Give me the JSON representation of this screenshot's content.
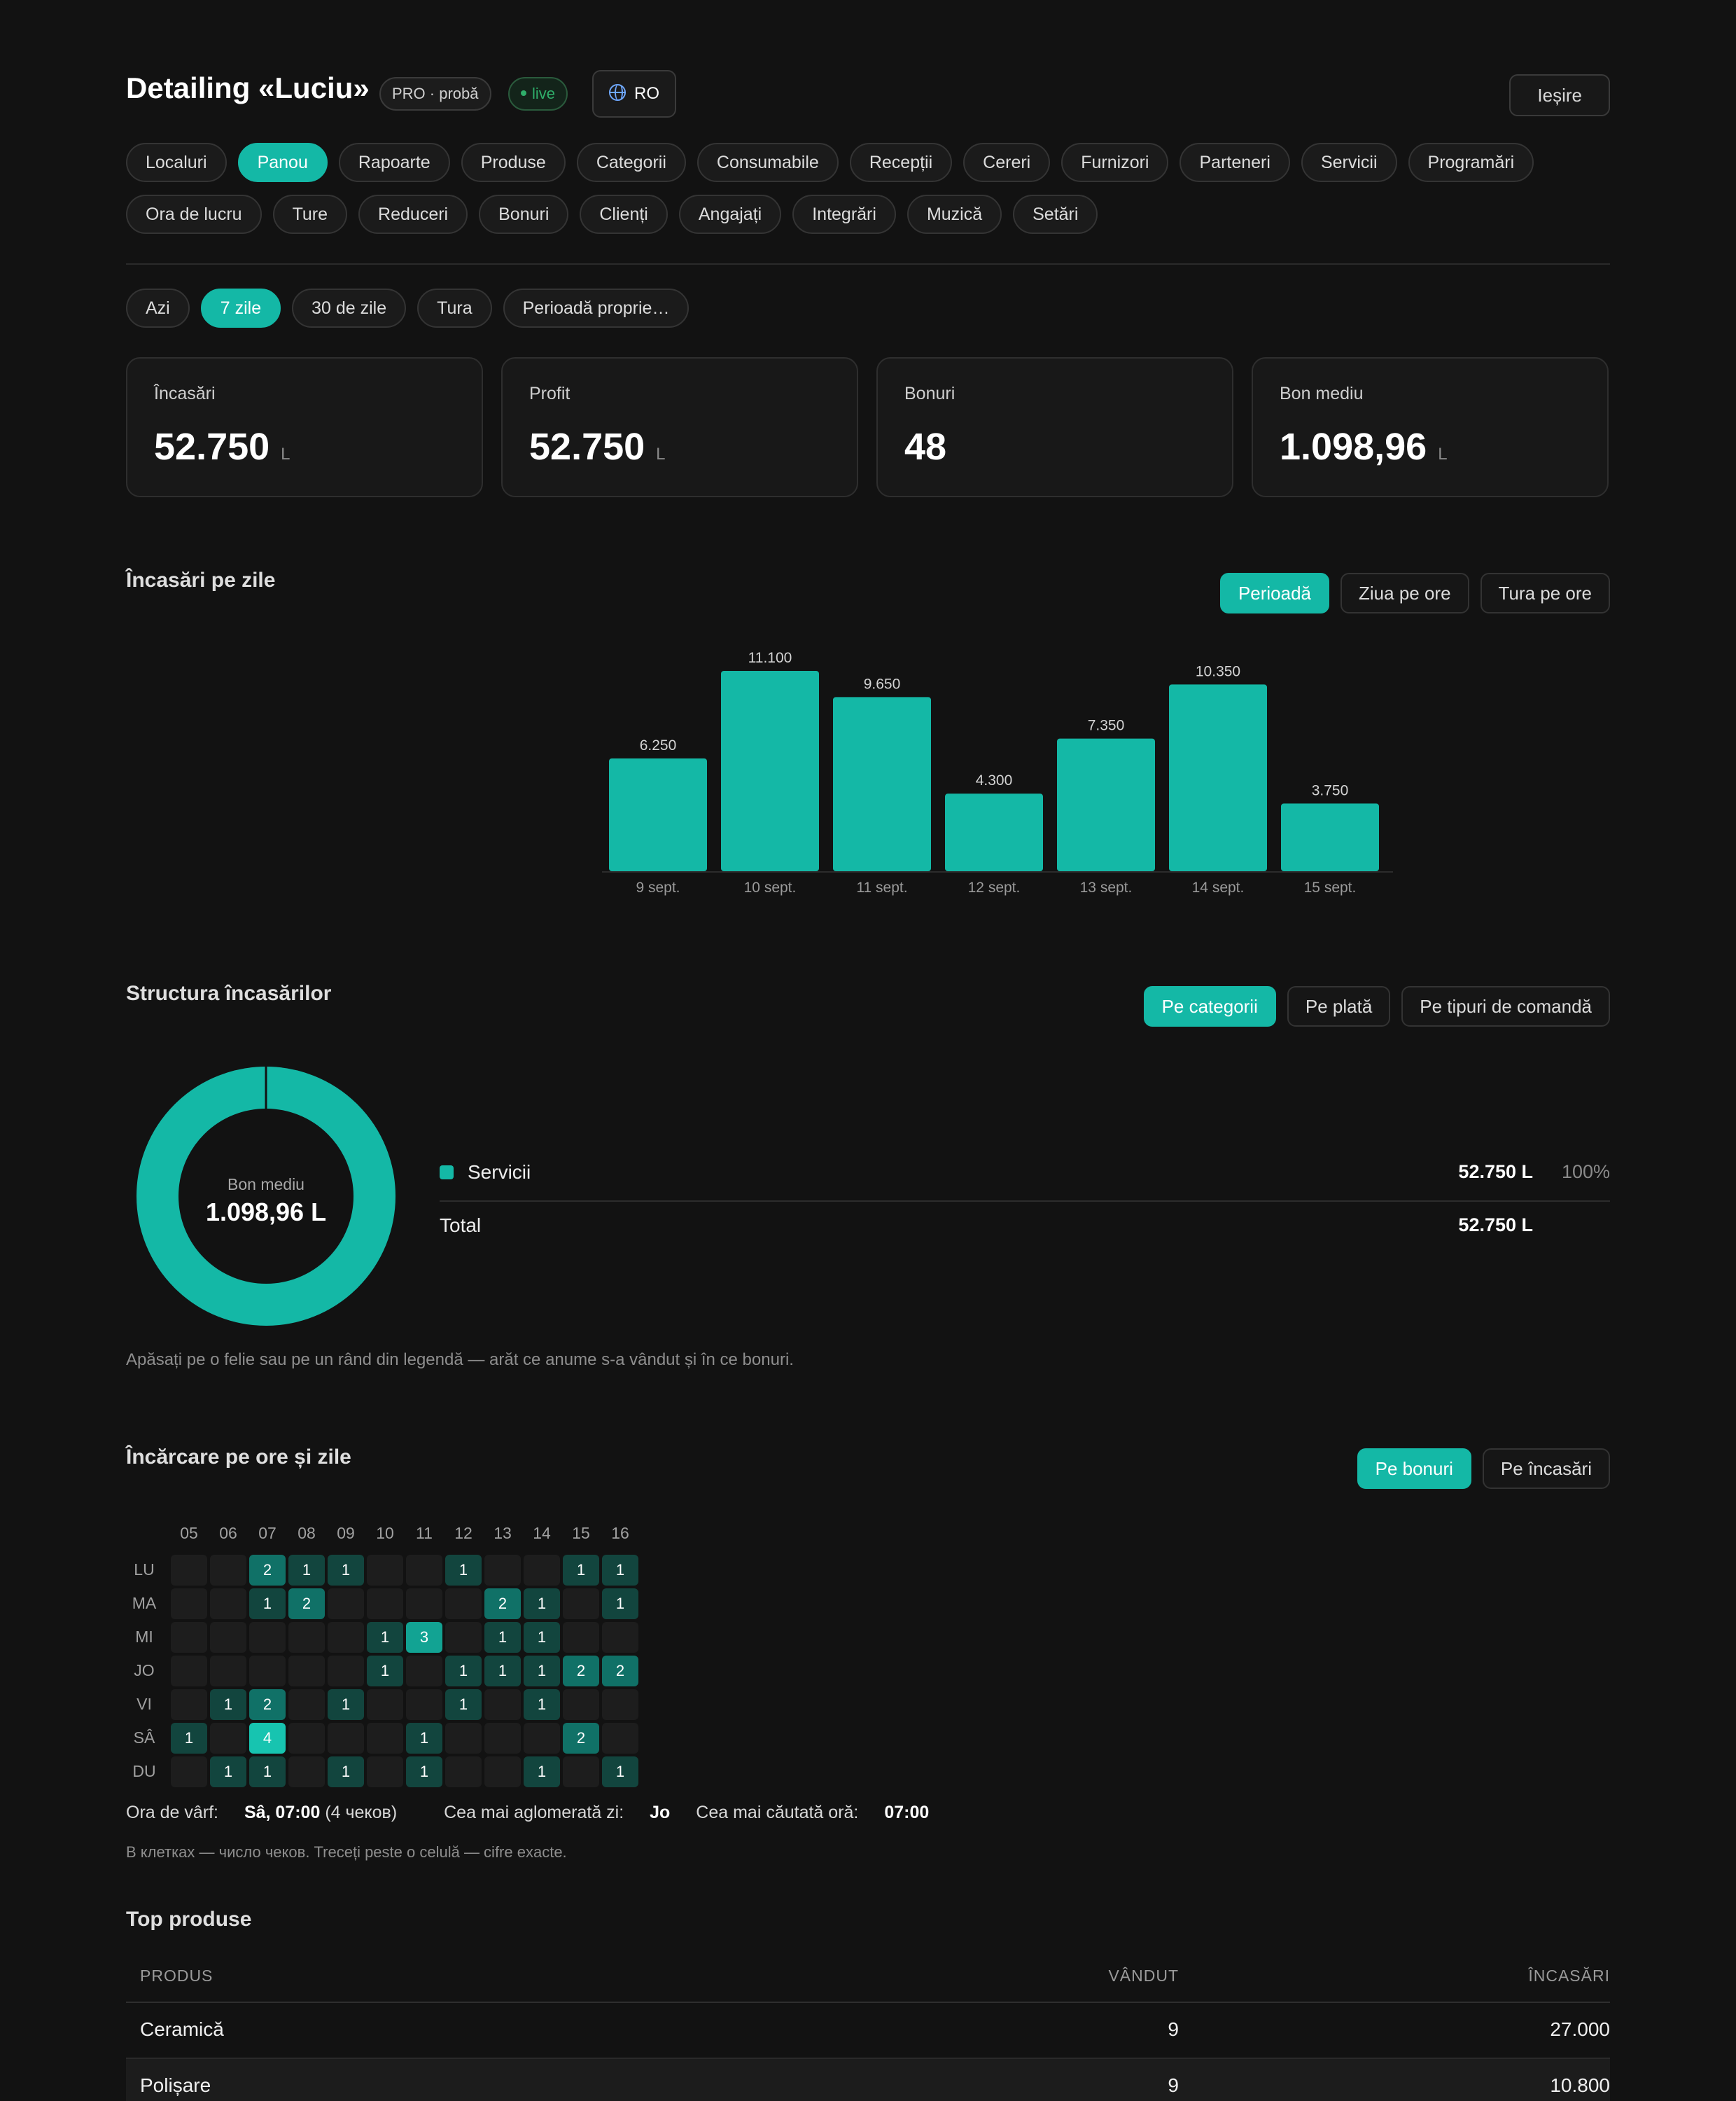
{
  "app": {
    "title": "Detailing «Luciu»",
    "plan_badge": "PRO · probă",
    "live_badge": "live",
    "lang_button": "RO",
    "exit_button": "Ieșire"
  },
  "nav": {
    "row1": [
      "Localuri",
      "Panou",
      "Rapoarte",
      "Produse",
      "Categorii",
      "Consumabile",
      "Recepții",
      "Cereri",
      "Furnizori",
      "Parteneri",
      "Servicii",
      "Programări"
    ],
    "row2": [
      "Ora de lucru",
      "Ture",
      "Reduceri",
      "Bonuri",
      "Clienți",
      "Angajați",
      "Integrări",
      "Muzică",
      "Setări"
    ],
    "active": "Panou"
  },
  "period": {
    "options": [
      "Azi",
      "7 zile",
      "30 de zile",
      "Tura",
      "Perioadă proprie…"
    ],
    "active": "7 zile"
  },
  "kpis": [
    {
      "label": "Încasări",
      "value": "52.750",
      "unit": "L"
    },
    {
      "label": "Profit",
      "value": "52.750",
      "unit": "L"
    },
    {
      "label": "Bonuri",
      "value": "48",
      "unit": ""
    },
    {
      "label": "Bon mediu",
      "value": "1.098,96",
      "unit": "L"
    }
  ],
  "revenue_section": {
    "title": "Încasări pe zile",
    "toggles": [
      "Perioadă",
      "Ziua pe ore",
      "Tura pe ore"
    ],
    "active_toggle": "Perioadă"
  },
  "chart_data": {
    "type": "bar",
    "categories": [
      "9 sept.",
      "10 sept.",
      "11 sept.",
      "12 sept.",
      "13 sept.",
      "14 sept.",
      "15 sept."
    ],
    "values": [
      6250,
      11100,
      9650,
      4300,
      7350,
      10350,
      3750
    ],
    "value_labels": [
      "6.250",
      "11.100",
      "9.650",
      "4.300",
      "7.350",
      "10.350",
      "3.750"
    ],
    "ylim": [
      0,
      11100
    ],
    "grid": false,
    "color": "#14b8a6"
  },
  "structure_section": {
    "title": "Structura încasărilor",
    "toggles": [
      "Pe categorii",
      "Pe plată",
      "Pe tipuri de comandă"
    ],
    "active_toggle": "Pe categorii",
    "donut_label": "Bon mediu",
    "donut_value": "1.098,96 L",
    "legend": [
      {
        "name": "Servicii",
        "amount": "52.750 L",
        "percent": "100%",
        "share": 1.0
      }
    ],
    "total_label": "Total",
    "total_amount": "52.750 L",
    "hint": "Apăsați pe o felie sau pe un rând din legendă — arăt ce anume s-a vândut și în ce bonuri."
  },
  "heatmap_section": {
    "title": "Încărcare pe ore și zile",
    "toggles": [
      "Pe bonuri",
      "Pe încasări"
    ],
    "active_toggle": "Pe bonuri",
    "hours": [
      "05",
      "06",
      "07",
      "08",
      "09",
      "10",
      "11",
      "12",
      "13",
      "14",
      "15",
      "16"
    ],
    "days": [
      "LU",
      "MA",
      "MI",
      "JO",
      "VI",
      "SÂ",
      "DU"
    ],
    "values": [
      [
        0,
        0,
        2,
        1,
        1,
        0,
        0,
        1,
        0,
        0,
        1,
        1
      ],
      [
        0,
        0,
        1,
        2,
        0,
        0,
        0,
        0,
        2,
        1,
        0,
        1
      ],
      [
        0,
        0,
        0,
        0,
        0,
        1,
        3,
        0,
        1,
        1,
        0,
        0
      ],
      [
        0,
        0,
        0,
        0,
        0,
        1,
        0,
        1,
        1,
        1,
        2,
        2
      ],
      [
        0,
        1,
        2,
        0,
        1,
        0,
        0,
        1,
        0,
        1,
        0,
        0
      ],
      [
        1,
        0,
        4,
        0,
        0,
        0,
        1,
        0,
        0,
        0,
        2,
        0
      ],
      [
        0,
        1,
        1,
        0,
        1,
        0,
        1,
        0,
        0,
        1,
        0,
        1
      ]
    ],
    "stat_peak_label": "Ora de vârf:",
    "stat_peak_value": "Sâ, 07:00",
    "stat_peak_note": "(4 чеков)",
    "stat_busiest_label": "Cea mai aglomerată zi:",
    "stat_busiest_value": "Jo",
    "stat_hour_label": "Cea mai căutată oră:",
    "stat_hour_value": "07:00",
    "hint": "В клетках — число чеков. Treceți peste o celulă — cifre exacte."
  },
  "top_products": {
    "title": "Top produse",
    "columns": [
      "PRODUS",
      "VÂNDUT",
      "ÎNCASĂRI"
    ],
    "rows": [
      {
        "name": "Ceramică",
        "sold": "9",
        "revenue": "27.000"
      },
      {
        "name": "Polișare",
        "sold": "9",
        "revenue": "10.800"
      }
    ]
  },
  "colors": {
    "accent": "#14b8a6",
    "background": "#121212",
    "live": "#2fae6a"
  }
}
